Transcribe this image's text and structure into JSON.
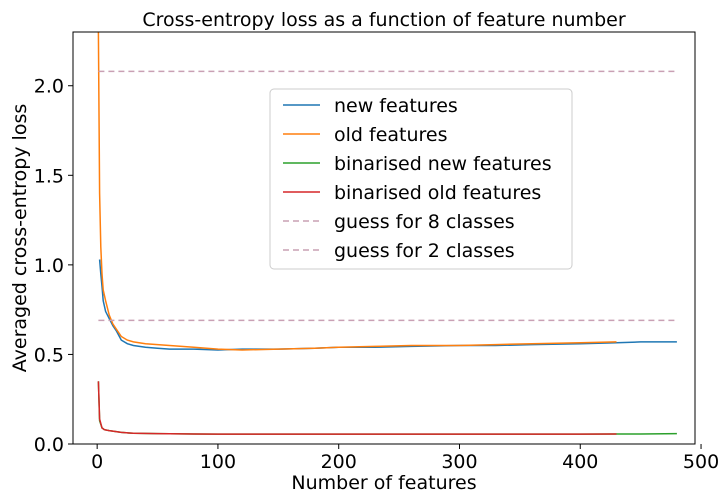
{
  "chart_data": {
    "type": "line",
    "title": "Cross-entropy loss as a function of feature number",
    "xlabel": "Number of features",
    "ylabel": "Averaged cross-entropy loss",
    "xlim": [
      -20,
      495
    ],
    "ylim": [
      0,
      2.3
    ],
    "xticks": [
      0,
      100,
      200,
      300,
      400,
      500
    ],
    "yticks": [
      0.0,
      0.5,
      1.0,
      1.5,
      2.0
    ],
    "xtick_labels": [
      "0",
      "100",
      "200",
      "300",
      "400",
      "500"
    ],
    "ytick_labels": [
      "0.0",
      "0.5",
      "1.0",
      "1.5",
      "2.0"
    ],
    "grid": false,
    "legend_position": "upper-center",
    "series": [
      {
        "name": "new features",
        "color": "#1f77b4",
        "x": [
          2,
          3,
          4,
          5,
          7,
          10,
          13,
          16,
          20,
          25,
          30,
          40,
          50,
          60,
          80,
          100,
          120,
          150,
          180,
          200,
          230,
          260,
          300,
          330,
          360,
          400,
          430,
          450,
          480
        ],
        "y": [
          1.03,
          0.95,
          0.88,
          0.8,
          0.74,
          0.7,
          0.66,
          0.63,
          0.58,
          0.56,
          0.55,
          0.54,
          0.535,
          0.53,
          0.53,
          0.525,
          0.53,
          0.53,
          0.535,
          0.54,
          0.54,
          0.545,
          0.55,
          0.55,
          0.555,
          0.56,
          0.565,
          0.57,
          0.57
        ]
      },
      {
        "name": "old features",
        "color": "#ff7f0e",
        "x": [
          1,
          2,
          3,
          4,
          5,
          7,
          10,
          13,
          16,
          20,
          25,
          30,
          40,
          50,
          60,
          80,
          100,
          120,
          150,
          180,
          200,
          230,
          260,
          300,
          330,
          360,
          400,
          430
        ],
        "y": [
          2.3,
          1.4,
          1.1,
          0.95,
          0.86,
          0.8,
          0.72,
          0.67,
          0.64,
          0.6,
          0.58,
          0.57,
          0.56,
          0.555,
          0.55,
          0.54,
          0.53,
          0.525,
          0.53,
          0.535,
          0.54,
          0.545,
          0.55,
          0.55,
          0.555,
          0.56,
          0.565,
          0.57
        ]
      },
      {
        "name": "binarised new features",
        "color": "#2ca02c",
        "x": [
          1,
          2,
          4,
          6,
          10,
          15,
          20,
          30,
          50,
          80,
          100,
          150,
          200,
          250,
          300,
          350,
          400,
          430,
          450,
          480
        ],
        "y": [
          0.35,
          0.13,
          0.09,
          0.08,
          0.075,
          0.07,
          0.065,
          0.06,
          0.058,
          0.056,
          0.055,
          0.055,
          0.055,
          0.055,
          0.055,
          0.055,
          0.055,
          0.056,
          0.056,
          0.058
        ]
      },
      {
        "name": "binarised old features",
        "color": "#d62728",
        "x": [
          1,
          2,
          4,
          6,
          10,
          15,
          20,
          30,
          50,
          80,
          100,
          150,
          200,
          250,
          300,
          350,
          400,
          430
        ],
        "y": [
          0.35,
          0.14,
          0.09,
          0.08,
          0.075,
          0.07,
          0.065,
          0.06,
          0.058,
          0.056,
          0.055,
          0.055,
          0.055,
          0.055,
          0.055,
          0.055,
          0.055,
          0.056
        ]
      },
      {
        "name": "guess for 8 classes",
        "color": "#c9a0b4",
        "dashed": true,
        "x": [
          1,
          480
        ],
        "y": [
          2.08,
          2.08
        ]
      },
      {
        "name": "guess for 2 classes",
        "color": "#c9a0b4",
        "dashed": true,
        "x": [
          1,
          480
        ],
        "y": [
          0.69,
          0.69
        ]
      }
    ]
  }
}
